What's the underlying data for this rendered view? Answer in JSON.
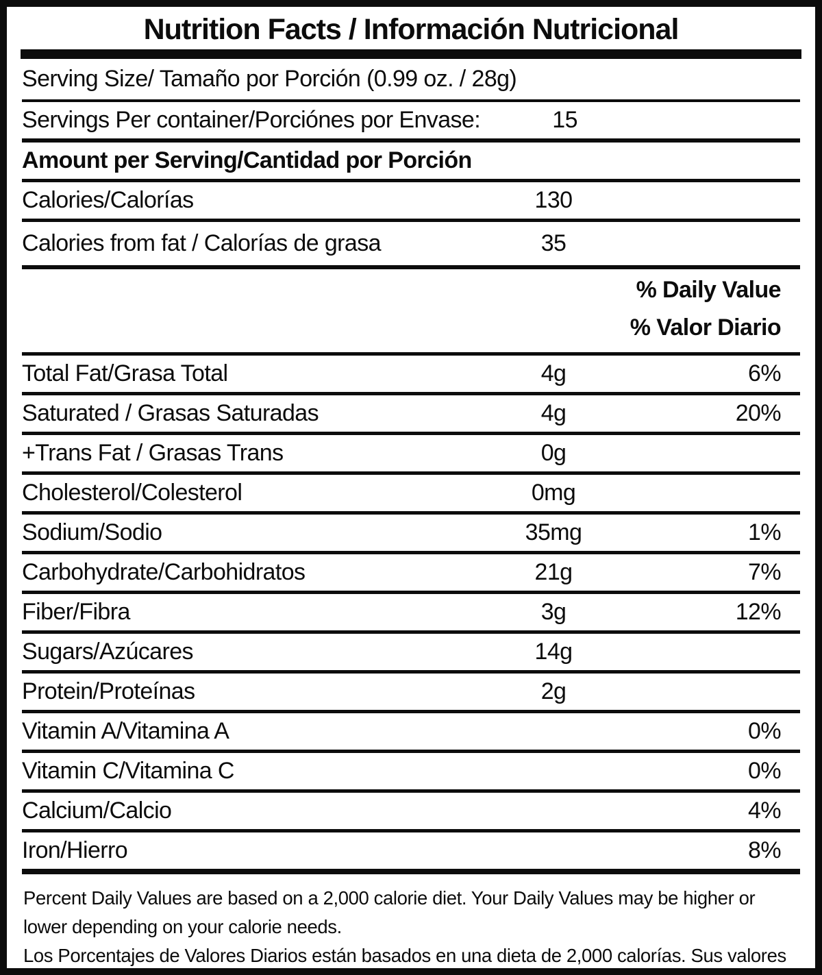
{
  "title": "Nutrition Facts / Información Nutricional",
  "rows": {
    "serving_size": "Serving Size/ Tamaño por Porción  (0.99 oz. / 28g)",
    "servings_label": "Servings Per container/Porciónes por Envase:",
    "servings_value": "15",
    "amount_heading": "Amount per Serving/Cantidad por Porción",
    "calories_label": "Calories/Calorías",
    "calories_value": "130",
    "calories_fat_label": "Calories from fat / Calorías de grasa",
    "calories_fat_value": "35",
    "dv_heading_en": "% Daily Value",
    "dv_heading_es": "% Valor Diario"
  },
  "nutrients": [
    {
      "label": "Total Fat/Grasa Total",
      "amount": "4g",
      "dv": "6%"
    },
    {
      "label": "Saturated / Grasas Saturadas",
      "amount": "4g",
      "dv": "20%"
    },
    {
      "label": "+Trans Fat / Grasas Trans",
      "amount": "0g",
      "dv": ""
    },
    {
      "label": "Cholesterol/Colesterol",
      "amount": "0mg",
      "dv": ""
    },
    {
      "label": "Sodium/Sodio",
      "amount": "35mg",
      "dv": "1%"
    },
    {
      "label": "Carbohydrate/Carbohidratos",
      "amount": "21g",
      "dv": "7%"
    },
    {
      "label": "Fiber/Fibra",
      "amount": "3g",
      "dv": "12%"
    },
    {
      "label": "Sugars/Azúcares",
      "amount": "14g",
      "dv": ""
    },
    {
      "label": "Protein/Proteínas",
      "amount": "2g",
      "dv": ""
    },
    {
      "label": "Vitamin A/Vitamina A",
      "amount": "",
      "dv": "0%"
    },
    {
      "label": "Vitamin C/Vitamina C",
      "amount": "",
      "dv": "0%"
    },
    {
      "label": "Calcium/Calcio",
      "amount": "",
      "dv": "4%"
    },
    {
      "label": "Iron/Hierro",
      "amount": "",
      "dv": "8%"
    }
  ],
  "footnotes": {
    "en": "Percent Daily Values are based on a 2,000 calorie diet. Your Daily Values may be higher or lower depending on your calorie needs.",
    "es": "Los Porcentajes de Valores Diarios están basados en una dieta de 2,000 calorías. Sus valores diarios pueden ser mayores o menores dependiendo de sus necesidades calóricas"
  },
  "colors": {
    "text": "#0c0c0c",
    "background": "#ffffff",
    "border": "#0c0c0c"
  }
}
